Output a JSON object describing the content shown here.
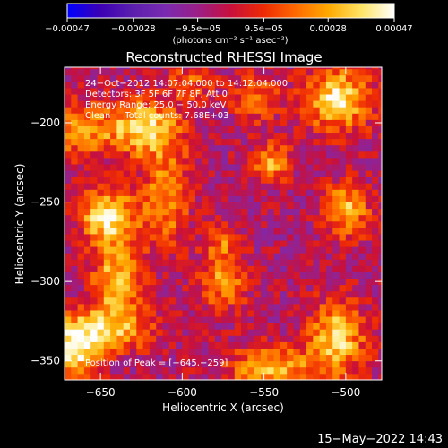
{
  "chart_data": {
    "type": "heatmap",
    "title": "Reconstructed RHESSI Image",
    "xlabel": "Heliocentric X (arcsec)",
    "ylabel": "Heliocentric Y (arcsec)",
    "xlim": [
      -672,
      -478
    ],
    "ylim": [
      -362,
      -165
    ],
    "x_ticks": [
      -650,
      -600,
      -550,
      -500
    ],
    "y_ticks": [
      -200,
      -250,
      -300,
      -350
    ],
    "x_tick_labels": [
      "−650",
      "−600",
      "−550",
      "−500"
    ],
    "y_tick_labels": [
      "−200",
      "−250",
      "−300",
      "−350"
    ],
    "colorbar": {
      "range": [
        -0.00047,
        0.00047
      ],
      "tick_values": [
        -0.00047,
        -0.00028,
        -9.5e-05,
        9.5e-05,
        0.00028,
        0.00047
      ],
      "tick_labels": [
        "−0.00047",
        "−0.00028",
        "−9.5e−05",
        "9.5e−05",
        "0.00028",
        "0.00047"
      ],
      "unit_label": "(photons cm⁻² s⁻¹ asec⁻²)"
    },
    "annotations": [
      "24−Oct−2012 14:07:04.000 to 14:12:04.000",
      "Detectors: 3F 5F 6F 7F 8F, Att 0",
      "Energy Range: 25.0 − 50.0 keV",
      "Clean     Total counts: 7.68E+03"
    ],
    "peak_label": "Position of Peak = [−645,−259]",
    "peak": {
      "x": -645,
      "y": -259
    },
    "pixel_size_arcsec": 4,
    "sources": [
      {
        "x": -645,
        "y": -259,
        "amp": 0.00047,
        "sx": 12,
        "sy": 12
      },
      {
        "x": -625,
        "y": -203,
        "amp": 0.00042,
        "sx": 16,
        "sy": 12
      },
      {
        "x": -663,
        "y": -205,
        "amp": 0.0003,
        "sx": 12,
        "sy": 12
      },
      {
        "x": -640,
        "y": -300,
        "amp": 0.0004,
        "sx": 10,
        "sy": 16
      },
      {
        "x": -610,
        "y": -245,
        "amp": 0.0003,
        "sx": 10,
        "sy": 24
      },
      {
        "x": -650,
        "y": -330,
        "amp": 0.00035,
        "sx": 22,
        "sy": 10
      },
      {
        "x": -665,
        "y": -345,
        "amp": 0.0004,
        "sx": 10,
        "sy": 12
      },
      {
        "x": -505,
        "y": -185,
        "amp": 0.00045,
        "sx": 14,
        "sy": 14
      },
      {
        "x": -545,
        "y": -225,
        "amp": 0.00035,
        "sx": 8,
        "sy": 8
      },
      {
        "x": -500,
        "y": -255,
        "amp": 0.00035,
        "sx": 10,
        "sy": 12
      },
      {
        "x": -505,
        "y": -335,
        "amp": 0.0004,
        "sx": 12,
        "sy": 16
      },
      {
        "x": -545,
        "y": -355,
        "amp": 0.00035,
        "sx": 20,
        "sy": 10
      },
      {
        "x": -575,
        "y": -300,
        "amp": 0.0003,
        "sx": 10,
        "sy": 12
      },
      {
        "x": -555,
        "y": -185,
        "amp": 0.00025,
        "sx": 10,
        "sy": 10
      },
      {
        "x": -575,
        "y": -275,
        "amp": 0.00022,
        "sx": 8,
        "sy": 8
      },
      {
        "x": -595,
        "y": -175,
        "amp": 0.0002,
        "sx": 10,
        "sy": 8
      }
    ],
    "background_level": -5e-05,
    "colormap": [
      "#0000ff",
      "#3b00b5",
      "#5b1fae",
      "#7a2bb0",
      "#9b1f86",
      "#c8103c",
      "#ee2a05",
      "#ff6a00",
      "#ffaa00",
      "#ffe566",
      "#ffffff"
    ]
  },
  "footer": {
    "timestamp": "15−May−2022 14:43"
  }
}
